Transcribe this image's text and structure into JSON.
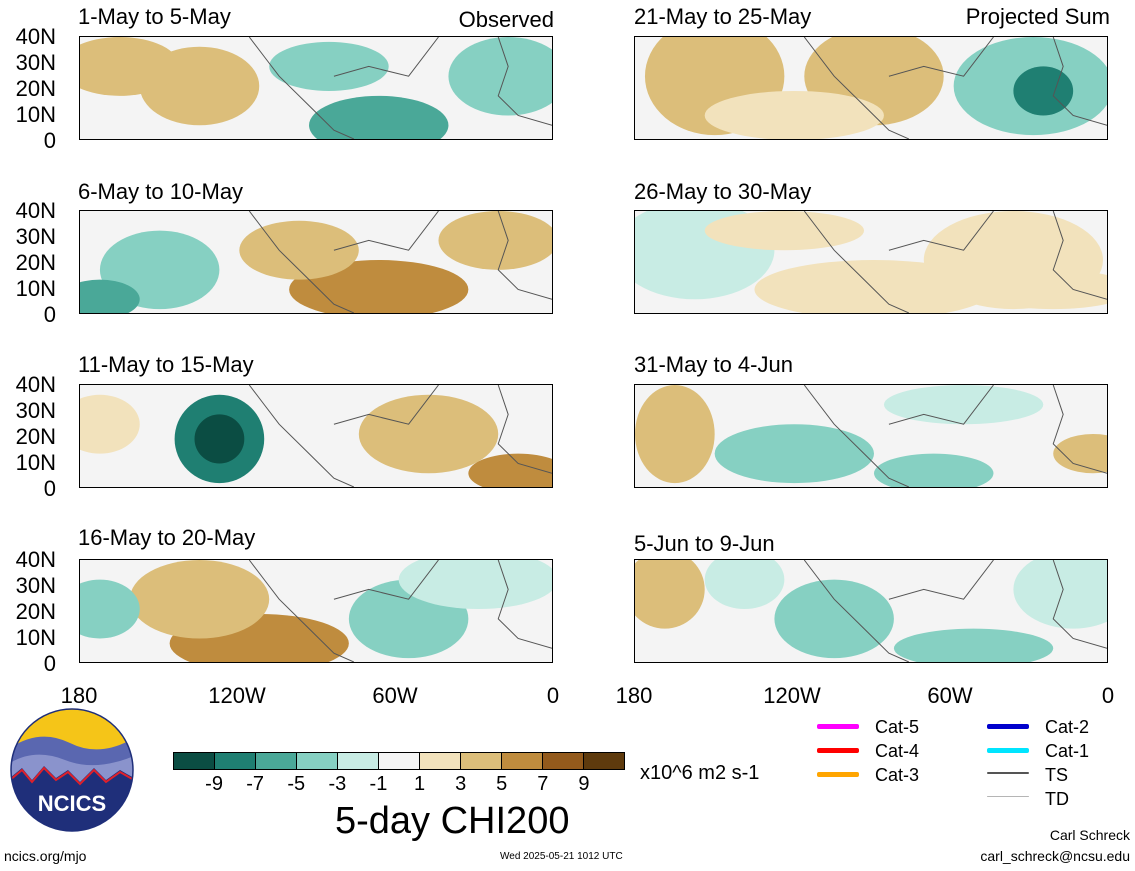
{
  "panels": [
    {
      "title": "1-May to 5-May",
      "tag": "Observed"
    },
    {
      "title": "6-May to 10-May",
      "tag": ""
    },
    {
      "title": "11-May to 15-May",
      "tag": ""
    },
    {
      "title": "16-May to 20-May",
      "tag": ""
    },
    {
      "title": "21-May to 25-May",
      "tag": "Projected Sum"
    },
    {
      "title": "26-May to 30-May",
      "tag": ""
    },
    {
      "title": "31-May to 4-Jun",
      "tag": ""
    },
    {
      "title": "5-Jun to 9-Jun",
      "tag": ""
    }
  ],
  "y_labels": [
    "40N",
    "30N",
    "20N",
    "10N",
    "0"
  ],
  "x_labels": [
    "180",
    "120W",
    "60W",
    "0"
  ],
  "colorbar": {
    "colors": [
      "#0b4d43",
      "#1f7f72",
      "#4aa898",
      "#86d0c2",
      "#c8ece4",
      "#f5f5f5",
      "#f2e2bc",
      "#dcbe7a",
      "#bf8c3e",
      "#935a1c",
      "#5e3a0d"
    ],
    "ticks": [
      "-9",
      "-7",
      "-5",
      "-3",
      "-1",
      "1",
      "3",
      "5",
      "7",
      "9"
    ],
    "units": "x10^6 m2 s-1"
  },
  "main_title": "5-day CHI200",
  "legend": [
    {
      "label": "Cat-5",
      "color": "#ff00ff"
    },
    {
      "label": "Cat-4",
      "color": "#ff0000"
    },
    {
      "label": "Cat-3",
      "color": "#ffa500"
    },
    {
      "label": "Cat-2",
      "color": "#0000cc"
    },
    {
      "label": "Cat-1",
      "color": "#00e5ff"
    },
    {
      "label": "TS",
      "color": "#555555"
    },
    {
      "label": "TD",
      "color": "#b5b5b5"
    }
  ],
  "logo_text": "NCICS",
  "footer": {
    "left": "ncics.org/mjo",
    "center": "Wed 2025-05-21 1012 UTC",
    "author": "Carl Schreck",
    "email": "carl_schreck@ncsu.edu"
  }
}
